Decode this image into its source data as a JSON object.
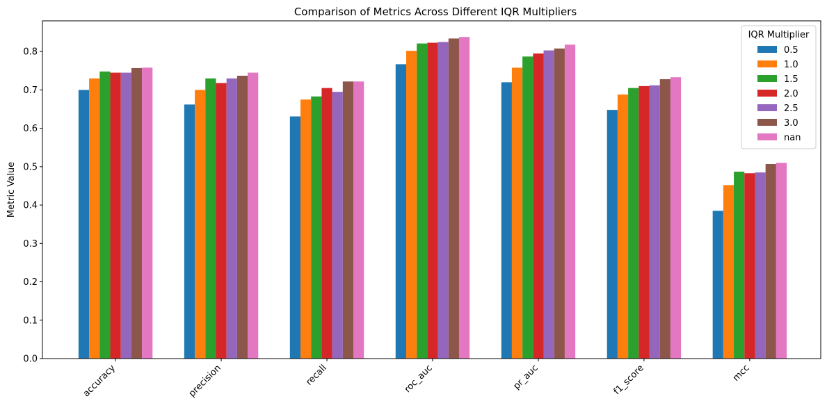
{
  "chart_data": {
    "type": "bar",
    "title": "Comparison of Metrics Across Different IQR Multipliers",
    "xlabel": "",
    "ylabel": "Metric Value",
    "ylim": [
      0,
      0.88
    ],
    "yticks": [
      "0.0",
      "0.1",
      "0.2",
      "0.3",
      "0.4",
      "0.5",
      "0.6",
      "0.7",
      "0.8"
    ],
    "grid": false,
    "legend_title": "IQR Multiplier",
    "legend_position": "top-right",
    "categories": [
      "accuracy",
      "precision",
      "recall",
      "roc_auc",
      "pr_auc",
      "f1_score",
      "mcc"
    ],
    "series": [
      {
        "name": "0.5",
        "color": "#1f77b4",
        "values": [
          0.7,
          0.662,
          0.631,
          0.767,
          0.72,
          0.648,
          0.385
        ]
      },
      {
        "name": "1.0",
        "color": "#ff7f0e",
        "values": [
          0.73,
          0.7,
          0.675,
          0.802,
          0.758,
          0.688,
          0.452
        ]
      },
      {
        "name": "1.5",
        "color": "#2ca02c",
        "values": [
          0.748,
          0.73,
          0.683,
          0.821,
          0.787,
          0.705,
          0.487
        ]
      },
      {
        "name": "2.0",
        "color": "#d62728",
        "values": [
          0.745,
          0.718,
          0.705,
          0.823,
          0.795,
          0.71,
          0.483
        ]
      },
      {
        "name": "2.5",
        "color": "#9467bd",
        "values": [
          0.745,
          0.73,
          0.695,
          0.825,
          0.803,
          0.712,
          0.485
        ]
      },
      {
        "name": "3.0",
        "color": "#8c564b",
        "values": [
          0.757,
          0.737,
          0.722,
          0.834,
          0.808,
          0.728,
          0.507
        ]
      },
      {
        "name": "nan",
        "color": "#e377c2",
        "values": [
          0.758,
          0.745,
          0.722,
          0.838,
          0.818,
          0.733,
          0.51
        ]
      }
    ]
  }
}
